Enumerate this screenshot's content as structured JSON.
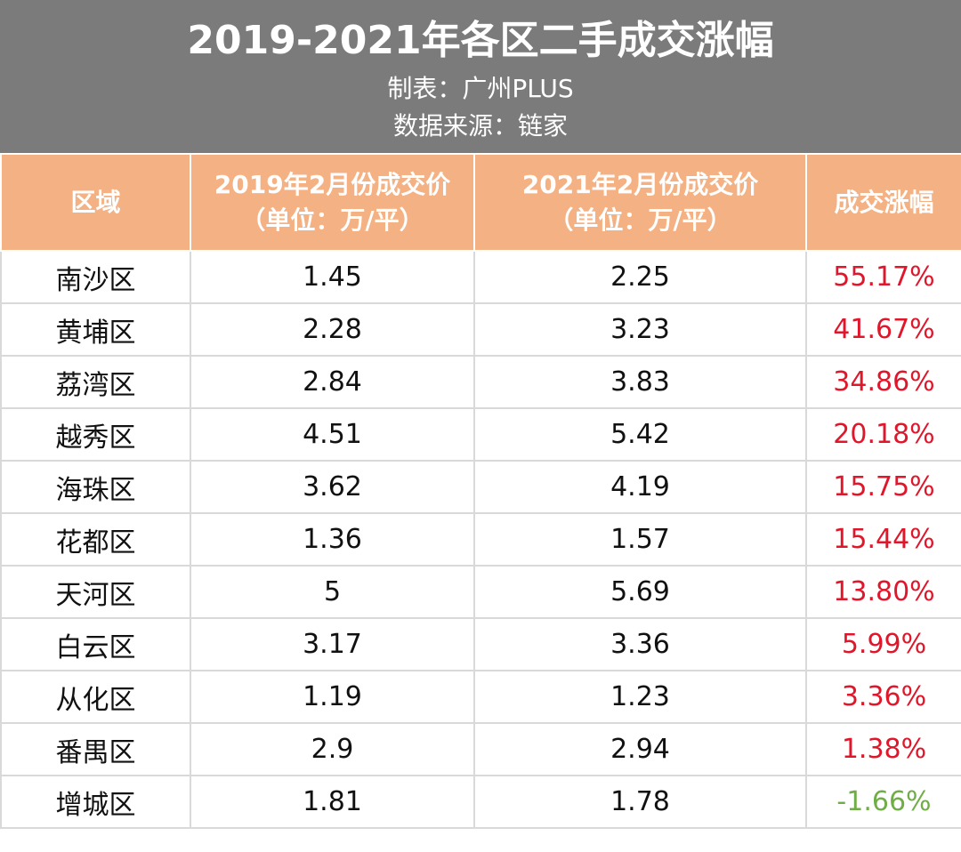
{
  "header": {
    "title": "2019-2021年各区二手成交涨幅",
    "maker": "制表：广州PLUS",
    "source": "数据来源：链家"
  },
  "columns": [
    {
      "line1": "区域",
      "line2": ""
    },
    {
      "line1": "2019年2月份成交价",
      "line2": "（单位：万/平）"
    },
    {
      "line1": "2021年2月份成交价",
      "line2": "（单位：万/平）"
    },
    {
      "line1": "成交涨幅",
      "line2": ""
    }
  ],
  "colors": {
    "header_bg": "#7b7b7b",
    "column_header_bg": "#f4b183",
    "positive": "#e0162b",
    "negative": "#70ad47",
    "grid": "#d9d9d9"
  },
  "chart_data": {
    "type": "table",
    "title": "2019-2021年各区二手成交涨幅",
    "columns": [
      "区域",
      "2019年2月份成交价（单位：万/平）",
      "2021年2月份成交价（单位：万/平）",
      "成交涨幅"
    ],
    "rows": [
      {
        "district": "南沙区",
        "price_2019": "1.45",
        "price_2021": "2.25",
        "change": "55.17%"
      },
      {
        "district": "黄埔区",
        "price_2019": "2.28",
        "price_2021": "3.23",
        "change": "41.67%"
      },
      {
        "district": "荔湾区",
        "price_2019": "2.84",
        "price_2021": "3.83",
        "change": "34.86%"
      },
      {
        "district": "越秀区",
        "price_2019": "4.51",
        "price_2021": "5.42",
        "change": "20.18%"
      },
      {
        "district": "海珠区",
        "price_2019": "3.62",
        "price_2021": "4.19",
        "change": "15.75%"
      },
      {
        "district": "花都区",
        "price_2019": "1.36",
        "price_2021": "1.57",
        "change": "15.44%"
      },
      {
        "district": "天河区",
        "price_2019": "5",
        "price_2021": "5.69",
        "change": "13.80%"
      },
      {
        "district": "白云区",
        "price_2019": "3.17",
        "price_2021": "3.36",
        "change": "5.99%"
      },
      {
        "district": "从化区",
        "price_2019": "1.19",
        "price_2021": "1.23",
        "change": "3.36%"
      },
      {
        "district": "番禺区",
        "price_2019": "2.9",
        "price_2021": "2.94",
        "change": "1.38%"
      },
      {
        "district": "增城区",
        "price_2019": "1.81",
        "price_2021": "1.78",
        "change": "-1.66%"
      }
    ]
  }
}
